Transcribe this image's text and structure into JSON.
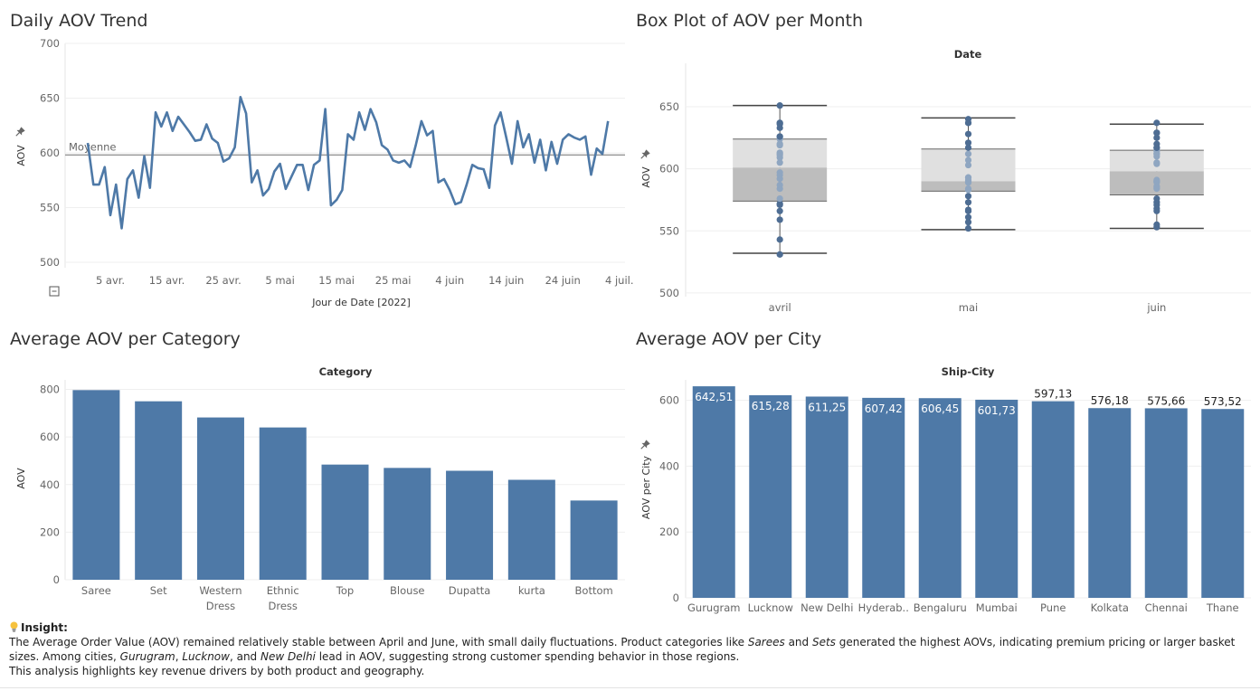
{
  "colors": {
    "bar": "#4e79a7",
    "line": "#4e79a7",
    "ref_line": "#999999",
    "box_light": "#e0e0e0",
    "box_dark": "#bdbdbd",
    "dots": "#4e6d93"
  },
  "panels": {
    "daily": {
      "title": "Daily AOV Trend"
    },
    "box": {
      "title": "Box Plot of AOV per Month"
    },
    "category": {
      "title": "Average AOV per Category"
    },
    "city": {
      "title": "Average AOV per City"
    }
  },
  "chart_data": [
    {
      "id": "daily",
      "type": "line",
      "title": "Daily AOV Trend",
      "xlabel": "Jour de Date [2022]",
      "ylabel": "AOV",
      "ylim": [
        495,
        700
      ],
      "yticks": [
        500,
        550,
        600,
        650,
        700
      ],
      "x_ticks": [
        {
          "label": "5 avr.",
          "day": 4
        },
        {
          "label": "15 avr.",
          "day": 14
        },
        {
          "label": "25 avr.",
          "day": 24
        },
        {
          "label": "5 mai",
          "day": 34
        },
        {
          "label": "15 mai",
          "day": 44
        },
        {
          "label": "25 mai",
          "day": 54
        },
        {
          "label": "4 juin",
          "day": 64
        },
        {
          "label": "14 juin",
          "day": 74
        },
        {
          "label": "24 juin",
          "day": 84
        },
        {
          "label": "4 juil.",
          "day": 94
        }
      ],
      "x_range": [
        -4,
        95
      ],
      "reference_line": {
        "label": "Moyenne",
        "value": 598
      },
      "values": [
        609,
        571,
        571,
        587,
        543,
        571,
        531,
        576,
        584,
        559,
        597,
        568,
        637,
        624,
        637,
        620,
        633,
        626,
        619,
        611,
        612,
        626,
        613,
        609,
        592,
        595,
        605,
        651,
        636,
        573,
        584,
        561,
        567,
        583,
        590,
        567,
        578,
        589,
        589,
        566,
        589,
        593,
        640,
        552,
        557,
        566,
        617,
        612,
        637,
        621,
        640,
        628,
        607,
        603,
        593,
        591,
        593,
        587,
        607,
        629,
        616,
        620,
        573,
        576,
        566,
        553,
        555,
        571,
        589,
        586,
        585,
        568,
        625,
        637,
        614,
        590,
        629,
        605,
        617,
        591,
        612,
        584,
        610,
        590,
        612,
        617,
        614,
        612,
        615,
        580,
        604,
        599,
        629
      ]
    },
    {
      "id": "box",
      "type": "box",
      "title": "Box Plot of AOV per Month",
      "header": "Date",
      "ylabel": "AOV",
      "ylim": [
        497,
        685
      ],
      "yticks": [
        500,
        550,
        600,
        650
      ],
      "boxes": [
        {
          "label": "avril",
          "min": 532,
          "q1": 574,
          "median": 601,
          "q3": 624,
          "max": 651,
          "points": [
            531,
            543,
            559,
            566,
            571,
            572,
            576,
            584,
            587,
            592,
            595,
            597,
            605,
            609,
            611,
            612,
            613,
            619,
            620,
            624,
            626,
            626,
            633,
            636,
            637,
            637,
            651
          ]
        },
        {
          "label": "mai",
          "min": 551,
          "q1": 582,
          "median": 590,
          "q3": 616,
          "max": 641,
          "points": [
            552,
            557,
            561,
            566,
            566,
            567,
            573,
            578,
            583,
            584,
            589,
            589,
            590,
            591,
            593,
            593,
            603,
            607,
            612,
            617,
            621,
            628,
            637,
            637,
            640
          ]
        },
        {
          "label": "juin",
          "min": 552,
          "q1": 579,
          "median": 598,
          "q3": 615,
          "max": 636,
          "points": [
            553,
            555,
            566,
            568,
            571,
            573,
            576,
            584,
            585,
            586,
            589,
            590,
            590,
            591,
            604,
            605,
            610,
            612,
            612,
            614,
            615,
            617,
            617,
            620,
            625,
            629,
            629,
            637
          ]
        }
      ]
    },
    {
      "id": "category",
      "type": "bar",
      "title": "Average AOV per Category",
      "header": "Category",
      "ylabel": "AOV",
      "ylim": [
        0,
        840
      ],
      "yticks": [
        0,
        200,
        400,
        600,
        800
      ],
      "categories": [
        [
          "Saree"
        ],
        [
          "Set"
        ],
        [
          "Western",
          "Dress"
        ],
        [
          "Ethnic",
          "Dress"
        ],
        [
          "Top"
        ],
        [
          "Blouse"
        ],
        [
          "Dupatta"
        ],
        [
          "kurta"
        ],
        [
          "Bottom"
        ]
      ],
      "values": [
        797,
        750,
        682,
        640,
        484,
        470,
        458,
        420,
        333
      ]
    },
    {
      "id": "city",
      "type": "bar",
      "title": "Average AOV per City",
      "header": "Ship-City",
      "ylabel": "AOV per City",
      "ylim": [
        0,
        662
      ],
      "yticks": [
        0,
        200,
        400,
        600
      ],
      "categories": [
        "Gurugram",
        "Lucknow",
        "New Delhi",
        "Hyderab..",
        "Bengaluru",
        "Mumbai",
        "Pune",
        "Kolkata",
        "Chennai",
        "Thane"
      ],
      "values": [
        642.51,
        615.28,
        611.25,
        607.42,
        606.45,
        601.73,
        597.13,
        576.18,
        575.66,
        573.52
      ],
      "data_labels": [
        "642,51",
        "615,28",
        "611,25",
        "607,42",
        "606,45",
        "601,73",
        "597,13",
        "576,18",
        "575,66",
        "573,52"
      ],
      "label_inside": [
        true,
        true,
        true,
        true,
        true,
        true,
        false,
        false,
        false,
        false
      ]
    }
  ],
  "insight": {
    "heading": "Insight:",
    "p1_a": "The Average Order Value (AOV) remained relatively stable between April and June, with small daily fluctuations. Product categories like ",
    "p1_em1": "Sarees",
    "p1_b": " and ",
    "p1_em2": "Sets",
    "p1_c": " generated the highest AOVs, indicating premium pricing or larger basket sizes. Among cities, ",
    "p1_em3": "Gurugram",
    "p1_d": ", ",
    "p1_em4": "Lucknow",
    "p1_e": ", and ",
    "p1_em5": "New Delhi",
    "p1_f": " lead in AOV, suggesting strong customer spending behavior in those regions.",
    "p2": "This analysis highlights key revenue drivers by both product and geography."
  }
}
